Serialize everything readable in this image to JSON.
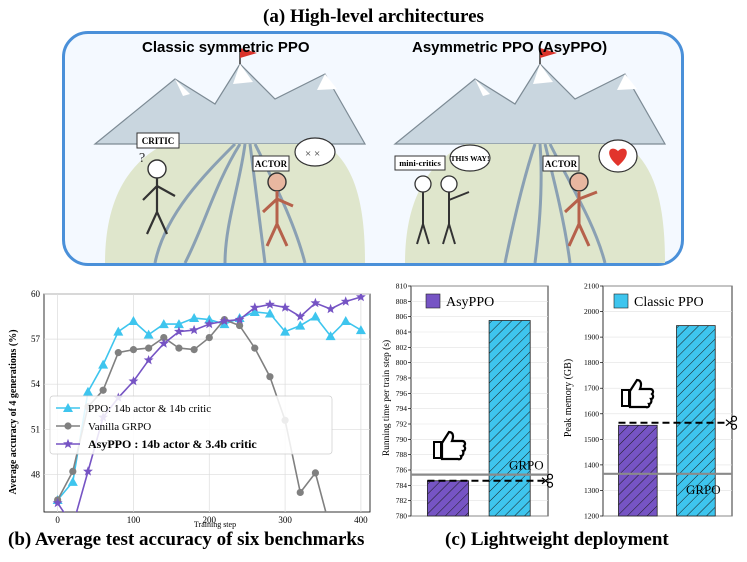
{
  "panel_a": {
    "title": "(a) High-level architectures",
    "left_title": "Classic symmetric PPO",
    "right_title": "Asymmetric PPO (AsyPPO)",
    "left_labels": {
      "critic": "CRITIC",
      "actor": "ACTOR"
    },
    "right_labels": {
      "mini_critics": "mini-critics",
      "this_way": "THIS WAY!",
      "actor": "ACTOR"
    }
  },
  "panel_b": {
    "caption": "(b) Average test accuracy of six benchmarks"
  },
  "panel_c": {
    "caption": "(c) Lightweight deployment"
  },
  "colors": {
    "ppo": "#3ec5ee",
    "grpo": "#808080",
    "asyppo": "#7654c4",
    "box_border": "#4a90d9"
  },
  "chart_data": [
    {
      "type": "line",
      "xlabel": "Training step",
      "ylabel": "Average accuracy of 4 generations (%)",
      "xlim": [
        -18,
        412
      ],
      "ylim": [
        45.5,
        60
      ],
      "xticks": [
        0,
        100,
        200,
        300,
        400
      ],
      "yticks": [
        48,
        51,
        54,
        57,
        60
      ],
      "legend": "lower-left",
      "series": [
        {
          "name": "PPO: 14b actor & 14b critic",
          "marker": "triangle",
          "x": [
            0,
            20,
            40,
            60,
            80,
            100,
            120,
            140,
            160,
            180,
            200,
            220,
            240,
            260,
            280,
            300,
            320,
            340,
            360,
            380,
            400
          ],
          "y": [
            46.3,
            47.5,
            53.5,
            55.3,
            57.5,
            58.2,
            57.3,
            58.0,
            58.0,
            58.4,
            58.3,
            58.0,
            58.4,
            58.8,
            58.7,
            57.5,
            57.9,
            58.5,
            57.2,
            58.2,
            57.6
          ]
        },
        {
          "name": "Vanilla GRPO",
          "marker": "circle",
          "x": [
            0,
            20,
            40,
            60,
            80,
            100,
            120,
            140,
            160,
            180,
            200,
            220,
            240,
            260,
            280,
            300,
            320,
            340,
            360
          ],
          "y": [
            46.3,
            48.2,
            52.5,
            53.6,
            56.1,
            56.3,
            56.4,
            57.1,
            56.4,
            56.3,
            57.1,
            58.3,
            57.9,
            56.4,
            54.5,
            51.6,
            46.8,
            48.1,
            44.3
          ]
        },
        {
          "name": "AsyPPO : 14b actor & 3.4b critic",
          "marker": "star",
          "x": [
            0,
            20,
            40,
            60,
            80,
            100,
            120,
            140,
            160,
            180,
            200,
            220,
            240,
            260,
            280,
            300,
            320,
            340,
            360,
            380,
            400
          ],
          "y": [
            46.1,
            44.6,
            48.2,
            51.8,
            53.1,
            54.2,
            55.6,
            56.7,
            57.5,
            57.6,
            58.0,
            58.2,
            58.3,
            59.1,
            59.3,
            59.1,
            58.5,
            59.4,
            59.0,
            59.5,
            59.8
          ]
        }
      ]
    },
    {
      "type": "bar",
      "ylabel": "Running time per train step (s)",
      "ylim": [
        780,
        810
      ],
      "yticks": [
        780,
        782,
        784,
        786,
        788,
        790,
        792,
        794,
        796,
        798,
        800,
        802,
        804,
        806,
        808,
        810
      ],
      "categories": [
        "AsyPPO",
        "Classic PPO"
      ],
      "values": [
        784.6,
        805.5
      ],
      "reference_line": {
        "label": "GRPO",
        "value": 785.4
      },
      "dashed_line": 784.6,
      "legend_label": "AsyPPO"
    },
    {
      "type": "bar",
      "ylabel": "Peak memory (GB)",
      "ylim": [
        1200,
        2100
      ],
      "yticks": [
        1200,
        1300,
        1400,
        1500,
        1600,
        1700,
        1800,
        1900,
        2000,
        2100
      ],
      "categories": [
        "AsyPPO",
        "Classic PPO"
      ],
      "values": [
        1555,
        1945
      ],
      "reference_line": {
        "label": "GRPO",
        "value": 1365
      },
      "dashed_line": 1565,
      "legend_label": "Classic PPO"
    }
  ]
}
